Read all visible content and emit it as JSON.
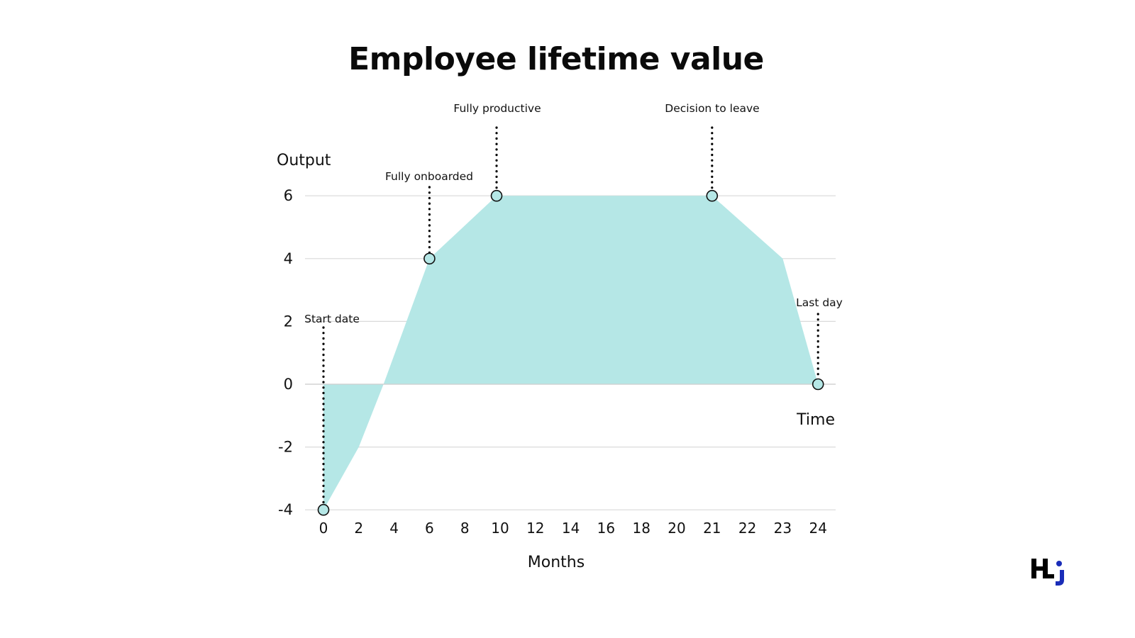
{
  "title": "Employee lifetime value",
  "logo": {
    "text": "HJ",
    "accent_color": "#1a2db8"
  },
  "colors": {
    "fill": "#b5e7e6",
    "grid": "#d9d9d9",
    "text": "#111111",
    "marker_stroke": "#111111"
  },
  "chart_data": {
    "type": "area",
    "title": "Employee lifetime value",
    "xlabel": "Months",
    "ylabel": "Output",
    "x_end_label": "Time",
    "categories": [
      "0",
      "2",
      "4",
      "6",
      "8",
      "10",
      "12",
      "14",
      "16",
      "18",
      "20",
      "21",
      "22",
      "23",
      "24"
    ],
    "x_axis_note": "tick labels evenly spaced (categorical)",
    "yticks": [
      6,
      4,
      2,
      0,
      -2,
      -4
    ],
    "ylim": [
      -4,
      6
    ],
    "grid": "horizontal",
    "series": [
      {
        "name": "Output",
        "points": [
          {
            "x_index": 0,
            "y": -4
          },
          {
            "x_index": 1,
            "y": -2
          },
          {
            "x_index": 1.7,
            "y": 0
          },
          {
            "x_index": 3,
            "y": 4
          },
          {
            "x_index": 4.9,
            "y": 6
          },
          {
            "x_index": 11,
            "y": 6
          },
          {
            "x_index": 13,
            "y": 4
          },
          {
            "x_index": 14,
            "y": 0
          }
        ]
      }
    ],
    "annotations": [
      {
        "label": "Start date",
        "x_index": 0,
        "y": -4
      },
      {
        "label": "Fully onboarded",
        "x_index": 3,
        "y": 4
      },
      {
        "label": "Fully productive",
        "x_index": 4.9,
        "y": 6
      },
      {
        "label": "Decision to leave",
        "x_index": 11,
        "y": 6
      },
      {
        "label": "Last day",
        "x_index": 14,
        "y": 0
      }
    ]
  }
}
